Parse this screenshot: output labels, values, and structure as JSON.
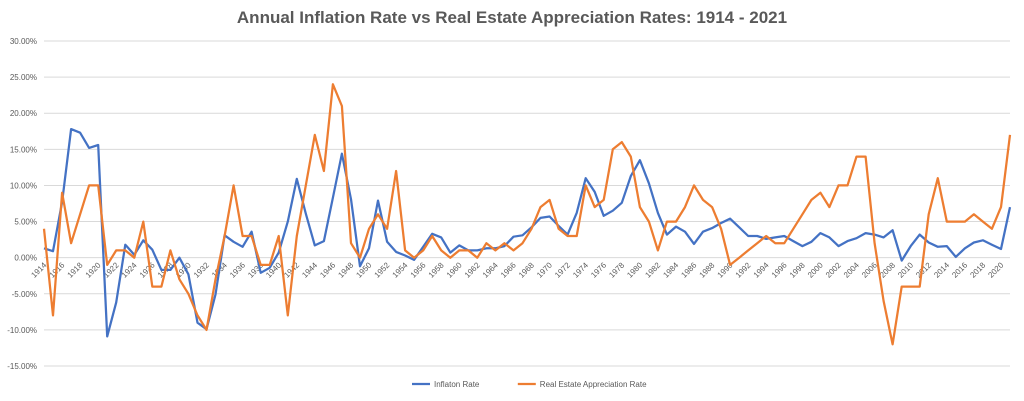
{
  "chart_data": {
    "type": "line",
    "title": "Annual Inflation Rate vs Real Estate Appreciation Rates: 1914 - 2021",
    "xlabel": "",
    "ylabel": "",
    "ylim": [
      -0.15,
      0.3
    ],
    "y_tick_values": [
      -0.15,
      -0.1,
      -0.05,
      0.0,
      0.05,
      0.1,
      0.15,
      0.2,
      0.25,
      0.3
    ],
    "y_tick_labels": [
      "-15.00%",
      "-10.00%",
      "-5.00%",
      "0.00%",
      "5.00%",
      "10.00%",
      "15.00%",
      "20.00%",
      "25.00%",
      "30.00%"
    ],
    "x": [
      1914,
      1915,
      1916,
      1917,
      1918,
      1919,
      1920,
      1921,
      1922,
      1923,
      1924,
      1925,
      1926,
      1927,
      1928,
      1929,
      1930,
      1931,
      1932,
      1933,
      1934,
      1935,
      1936,
      1937,
      1938,
      1939,
      1940,
      1941,
      1942,
      1943,
      1944,
      1945,
      1946,
      1947,
      1948,
      1949,
      1950,
      1951,
      1952,
      1953,
      1954,
      1955,
      1956,
      1957,
      1958,
      1959,
      1960,
      1961,
      1962,
      1963,
      1964,
      1965,
      1966,
      1967,
      1968,
      1969,
      1970,
      1971,
      1972,
      1973,
      1974,
      1975,
      1976,
      1977,
      1978,
      1979,
      1980,
      1981,
      1982,
      1983,
      1984,
      1985,
      1986,
      1987,
      1988,
      1989,
      1990,
      1991,
      1992,
      1993,
      1994,
      1995,
      1996,
      1997,
      1998,
      1999,
      2000,
      2001,
      2002,
      2003,
      2004,
      2005,
      2006,
      2007,
      2008,
      2009,
      2010,
      2011,
      2012,
      2013,
      2014,
      2015,
      2016,
      2017,
      2018,
      2019,
      2020,
      2021
    ],
    "x_tick_labels": [
      "1914",
      "1916",
      "1918",
      "1920",
      "1922",
      "1924",
      "1926",
      "1928",
      "1930",
      "1932",
      "1934",
      "1936",
      "1938",
      "1940",
      "1942",
      "1944",
      "1946",
      "1948",
      "1950",
      "1952",
      "1954",
      "1956",
      "1958",
      "1960",
      "1962",
      "1964",
      "1966",
      "1968",
      "1970",
      "1972",
      "1974",
      "1976",
      "1978",
      "1980",
      "1982",
      "1984",
      "1986",
      "1988",
      "1990",
      "1992",
      "1994",
      "1996",
      "1998",
      "2000",
      "2002",
      "2004",
      "2006",
      "2008",
      "2010",
      "2012",
      "2014",
      "2016",
      "2018",
      "2020"
    ],
    "grid": true,
    "legend_position": "bottom",
    "series": [
      {
        "name": "Inflaton Rate",
        "color": "#4472C4",
        "values": [
          0.013,
          0.009,
          0.077,
          0.178,
          0.173,
          0.152,
          0.156,
          -0.109,
          -0.062,
          0.018,
          0.004,
          0.024,
          0.011,
          -0.017,
          -0.017,
          0.0,
          -0.023,
          -0.09,
          -0.099,
          -0.051,
          0.031,
          0.022,
          0.015,
          0.036,
          -0.021,
          -0.014,
          0.007,
          0.05,
          0.109,
          0.061,
          0.017,
          0.023,
          0.083,
          0.144,
          0.081,
          -0.012,
          0.013,
          0.079,
          0.022,
          0.008,
          0.003,
          -0.003,
          0.015,
          0.033,
          0.028,
          0.007,
          0.017,
          0.01,
          0.01,
          0.013,
          0.013,
          0.016,
          0.029,
          0.031,
          0.042,
          0.055,
          0.057,
          0.044,
          0.032,
          0.062,
          0.11,
          0.091,
          0.058,
          0.065,
          0.076,
          0.113,
          0.135,
          0.103,
          0.062,
          0.032,
          0.043,
          0.036,
          0.019,
          0.036,
          0.041,
          0.048,
          0.054,
          0.042,
          0.03,
          0.03,
          0.026,
          0.028,
          0.03,
          0.023,
          0.016,
          0.022,
          0.034,
          0.028,
          0.016,
          0.023,
          0.027,
          0.034,
          0.032,
          0.028,
          0.038,
          -0.004,
          0.016,
          0.032,
          0.021,
          0.015,
          0.016,
          0.001,
          0.013,
          0.021,
          0.024,
          0.018,
          0.012,
          0.07
        ]
      },
      {
        "name": "Real Estate Appreciation Rate",
        "color": "#ED7D31",
        "values": [
          0.04,
          -0.08,
          0.09,
          0.02,
          0.06,
          0.1,
          0.1,
          -0.01,
          0.01,
          0.01,
          0.0,
          0.05,
          -0.04,
          -0.04,
          0.01,
          -0.03,
          -0.05,
          -0.08,
          -0.1,
          -0.03,
          0.03,
          0.1,
          0.03,
          0.03,
          -0.01,
          -0.01,
          0.03,
          -0.08,
          0.03,
          0.1,
          0.17,
          0.12,
          0.24,
          0.21,
          0.02,
          0.0,
          0.04,
          0.06,
          0.04,
          0.12,
          0.01,
          0.0,
          0.01,
          0.03,
          0.01,
          0.0,
          0.01,
          0.01,
          0.0,
          0.02,
          0.01,
          0.02,
          0.01,
          0.02,
          0.04,
          0.07,
          0.08,
          0.04,
          0.03,
          0.03,
          0.1,
          0.07,
          0.08,
          0.15,
          0.16,
          0.14,
          0.07,
          0.05,
          0.01,
          0.05,
          0.05,
          0.07,
          0.1,
          0.08,
          0.07,
          0.04,
          -0.01,
          0.0,
          0.01,
          0.02,
          0.03,
          0.02,
          0.02,
          0.04,
          0.06,
          0.08,
          0.09,
          0.07,
          0.1,
          0.1,
          0.14,
          0.14,
          0.02,
          -0.06,
          -0.12,
          -0.04,
          -0.04,
          -0.04,
          0.06,
          0.11,
          0.05,
          0.05,
          0.05,
          0.06,
          0.05,
          0.04,
          0.07,
          0.17
        ]
      }
    ]
  }
}
